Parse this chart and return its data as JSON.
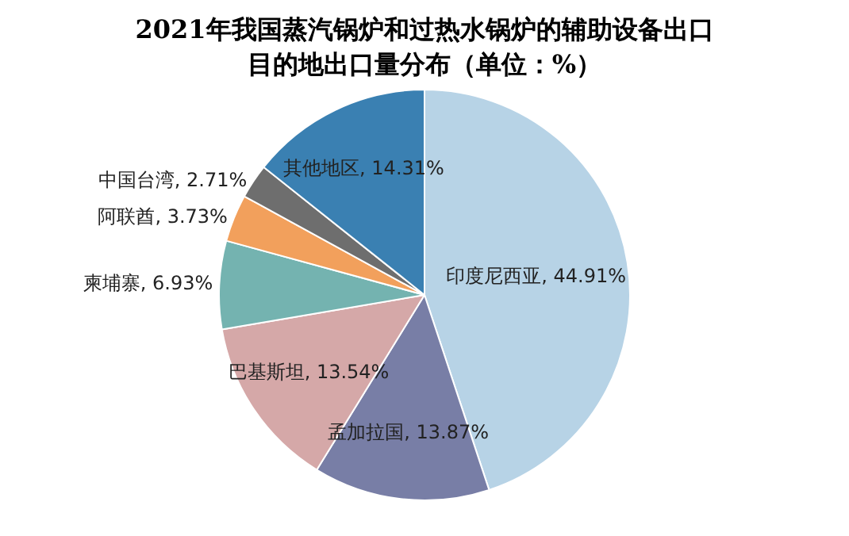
{
  "chart_data": {
    "type": "pie",
    "title": "2021年我国蒸汽锅炉和过热水锅炉的辅助设备出口目的地出口量分布（单位：%）",
    "categories": [
      "印度尼西亚",
      "孟加拉国",
      "巴基斯坦",
      "柬埔寨",
      "阿联酋",
      "中国台湾",
      "其他地区"
    ],
    "values": [
      44.91,
      13.87,
      13.54,
      6.93,
      3.73,
      2.71,
      14.31
    ],
    "value_labels": [
      "44.91%",
      "13.87%",
      "13.54%",
      "6.93%",
      "3.73%",
      "2.71%",
      "14.31%"
    ],
    "colors": [
      "#b7d3e6",
      "#787ea6",
      "#d5a8a8",
      "#74b3b0",
      "#f2a05c",
      "#6e6e6e",
      "#3a80b2"
    ],
    "legend": false
  }
}
